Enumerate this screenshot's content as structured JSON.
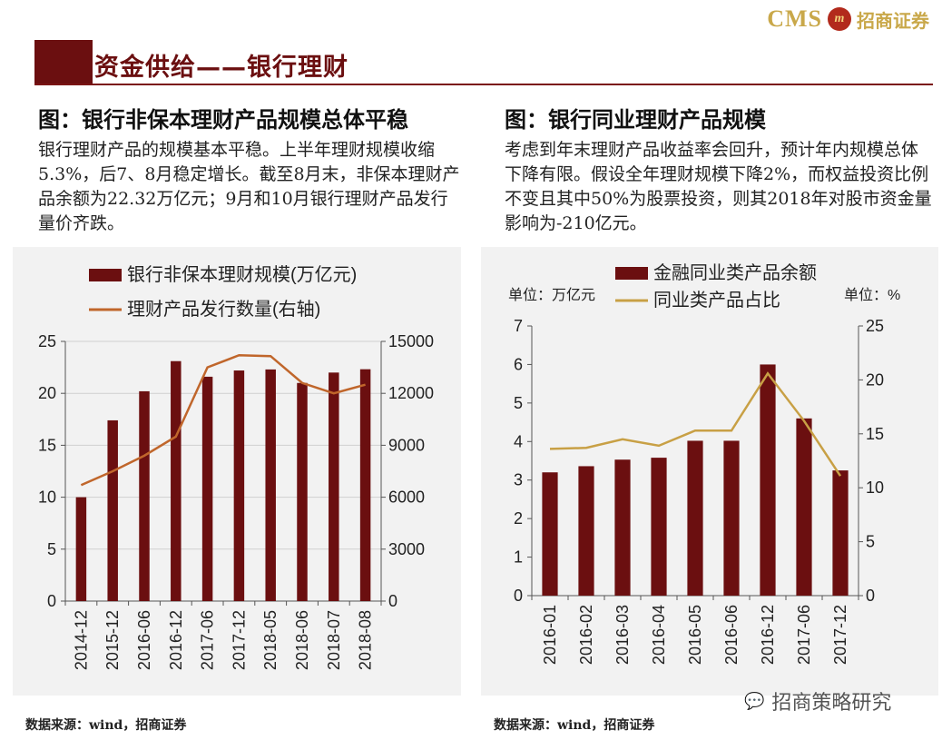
{
  "header": {
    "logo_latin": "CMS",
    "logo_mark": "m",
    "logo_cn": "招商证券",
    "title": "资金供给——银行理财"
  },
  "left": {
    "subtitle": "图：银行非保本理财产品规模总体平稳",
    "paragraph": "银行理财产品的规模基本平稳。上半年理财规模收缩5.3%，后7、8月稳定增长。截至8月末，非保本理财产品余额为22.32万亿元；9月和10月银行理财产品发行量价齐跌。",
    "source": "数据来源：wind，招商证券"
  },
  "right": {
    "subtitle": "图：银行同业理财产品规模",
    "paragraph": "考虑到年末理财产品收益率会回升，预计年内规模总体下降有限。假设全年理财规模下降2%，而权益投资比例不变且其中50%为股票投资，则其2018年对股市资金量影响为-210亿元。",
    "source": "数据来源：wind，招商证券"
  },
  "watermark": {
    "text": "招商策略研究"
  },
  "colors": {
    "bar": "#6b0f10",
    "line_left": "#c0662b",
    "line_right": "#c8a045",
    "panel": "#f2f2f2"
  },
  "chart_data": [
    {
      "type": "bar",
      "categories": [
        "2014-12",
        "2015-12",
        "2016-06",
        "2016-12",
        "2017-06",
        "2017-12",
        "2018-05",
        "2018-06",
        "2018-07",
        "2018-08"
      ],
      "series": [
        {
          "name": "银行非保本理财规模(万亿元)",
          "type": "bar",
          "axis": "left",
          "values": [
            10.0,
            17.4,
            20.2,
            23.1,
            21.6,
            22.2,
            22.3,
            21.0,
            22.0,
            22.32
          ]
        },
        {
          "name": "理财产品发行数量(右轴)",
          "type": "line",
          "axis": "right",
          "values": [
            6700,
            7500,
            8400,
            9500,
            13500,
            14200,
            14150,
            12600,
            12000,
            12500
          ]
        }
      ],
      "ylim": [
        0,
        25
      ],
      "yticks": [
        0,
        5,
        10,
        15,
        20,
        25
      ],
      "y2lim": [
        0,
        15000
      ],
      "y2ticks": [
        0,
        3000,
        6000,
        9000,
        12000,
        15000
      ],
      "ylabel": "",
      "y2label": "",
      "xlabel": "",
      "legend": "top-left",
      "grid": true
    },
    {
      "type": "bar",
      "categories": [
        "2016-01",
        "2016-02",
        "2016-03",
        "2016-04",
        "2016-05",
        "2016-06",
        "2016-12",
        "2017-06",
        "2017-12"
      ],
      "series": [
        {
          "name": "金融同业类产品余额",
          "type": "bar",
          "axis": "left",
          "values": [
            3.2,
            3.36,
            3.53,
            3.58,
            4.02,
            4.02,
            6.0,
            4.6,
            3.25
          ]
        },
        {
          "name": "同业类产品占比",
          "type": "line",
          "axis": "right",
          "values": [
            13.6,
            13.7,
            14.5,
            13.9,
            15.3,
            15.3,
            20.6,
            16.2,
            11.1
          ]
        }
      ],
      "ylim": [
        0,
        7
      ],
      "yticks": [
        0,
        1,
        2,
        3,
        4,
        5,
        6,
        7
      ],
      "y2lim": [
        0,
        25
      ],
      "y2ticks": [
        0,
        5,
        10,
        15,
        20,
        25
      ],
      "ylabel": "单位：万亿元",
      "y2label": "单位：%",
      "xlabel": "",
      "legend": "top",
      "grid": false
    }
  ]
}
